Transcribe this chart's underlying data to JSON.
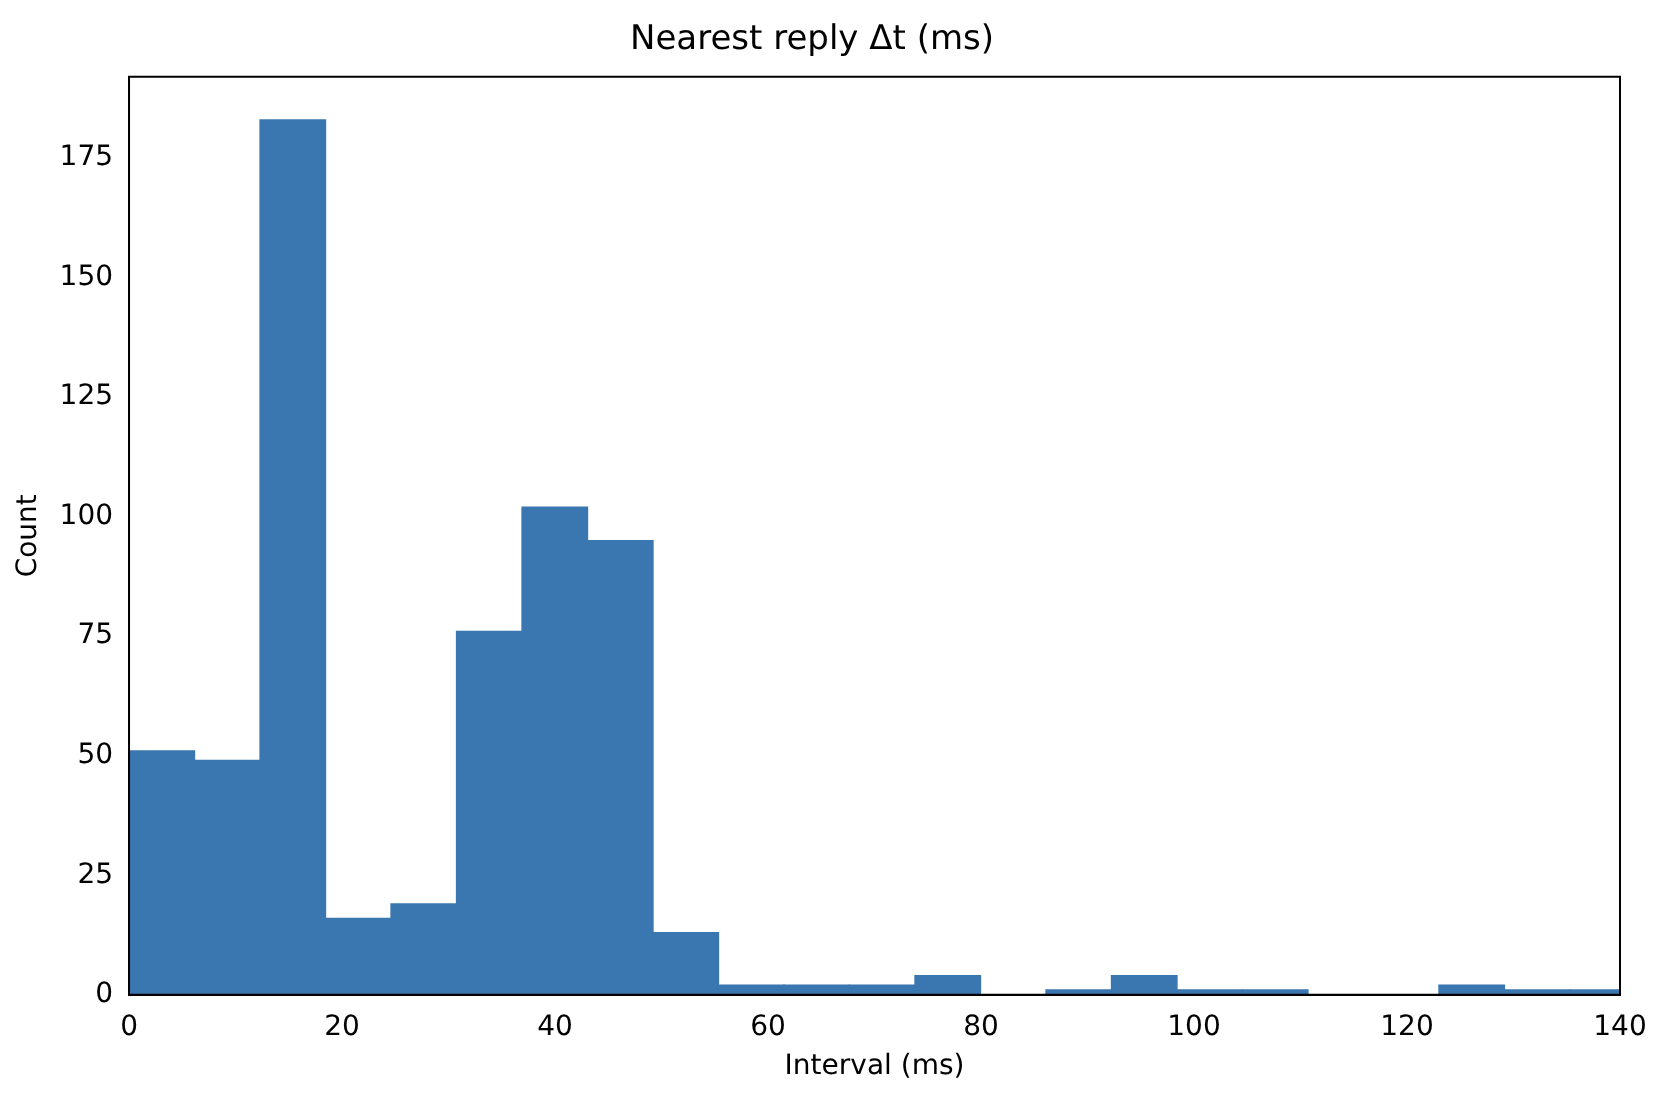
{
  "chart_data": {
    "type": "histogram",
    "title": "Nearest reply Δt (ms)",
    "xlabel": "Interval (ms)",
    "ylabel": "Count",
    "bins": [
      0,
      6.15,
      12.3,
      18.45,
      24.6,
      30.75,
      36.9,
      43.05,
      49.2,
      55.35,
      61.5,
      67.65,
      73.8,
      79.95,
      86.1,
      92.25,
      98.4,
      104.55,
      110.7,
      116.85,
      123,
      129.15,
      135.3,
      140
    ],
    "values": [
      51,
      49,
      183,
      16,
      19,
      76,
      102,
      95,
      13,
      2,
      2,
      2,
      4,
      0,
      1,
      4,
      1,
      1,
      0,
      0,
      2,
      1,
      1
    ],
    "color": "#3a76af",
    "xlim": [
      0,
      140
    ],
    "xticks": [
      0,
      20,
      40,
      60,
      80,
      100,
      120,
      140
    ],
    "ylim": [
      0,
      192
    ],
    "yticks": [
      0,
      25,
      50,
      75,
      100,
      125,
      150,
      175
    ],
    "grid": false,
    "legend": false
  }
}
